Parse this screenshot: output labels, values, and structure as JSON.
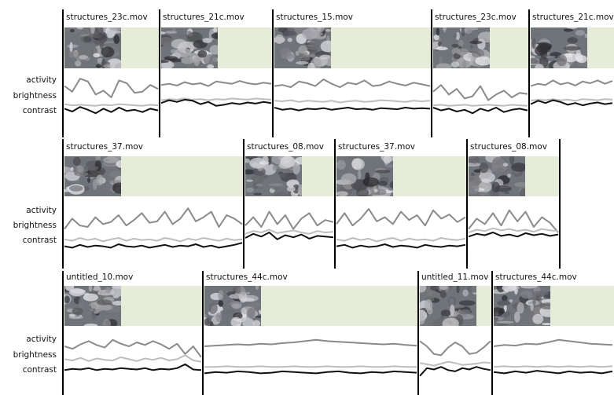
{
  "labels": {
    "activity": "activity",
    "brightness": "brightness",
    "contrast": "contrast"
  },
  "rows": [
    {
      "clips": [
        {
          "name": "structures_23c.mov",
          "activity": [
            70,
            60,
            83,
            78,
            55,
            62,
            50,
            80,
            75,
            58,
            60,
            72,
            65
          ],
          "brightness": [
            38,
            36,
            37,
            36,
            35,
            37,
            36,
            38,
            37,
            36,
            35,
            37,
            36
          ],
          "contrast": [
            30,
            25,
            33,
            28,
            22,
            30,
            24,
            32,
            26,
            28,
            24,
            30,
            27
          ]
        },
        {
          "name": "structures_21c.mov",
          "activity": [
            72,
            74,
            71,
            77,
            73,
            75,
            70,
            78,
            76,
            74,
            79,
            75,
            73,
            76,
            74
          ],
          "brightness": [
            45,
            47,
            46,
            48,
            46,
            47,
            45,
            47,
            46,
            48,
            47,
            46,
            48,
            47,
            46
          ],
          "contrast": [
            40,
            45,
            42,
            46,
            44,
            38,
            42,
            35,
            37,
            40,
            38,
            41,
            39,
            42,
            40
          ]
        },
        {
          "name": "structures_15.mov",
          "activity": [
            70,
            72,
            68,
            78,
            75,
            70,
            82,
            74,
            68,
            76,
            73,
            80,
            70,
            72,
            78,
            74,
            71,
            76,
            73,
            70
          ],
          "brightness": [
            44,
            43,
            45,
            42,
            44,
            43,
            42,
            44,
            41,
            43,
            44,
            42,
            43,
            45,
            44,
            43,
            42,
            44,
            43,
            44
          ],
          "contrast": [
            32,
            28,
            30,
            27,
            30,
            29,
            31,
            28,
            30,
            32,
            29,
            30,
            28,
            31,
            30,
            29,
            32,
            30,
            31,
            30
          ]
        },
        {
          "name": "structures_23c.mov",
          "activity": [
            60,
            72,
            55,
            65,
            48,
            52,
            70,
            45,
            55,
            62,
            50,
            58,
            56
          ],
          "brightness": [
            36,
            37,
            35,
            36,
            37,
            35,
            36,
            37,
            36,
            35,
            37,
            36,
            35
          ],
          "contrast": [
            32,
            27,
            30,
            25,
            28,
            22,
            30,
            26,
            32,
            24,
            28,
            30,
            27
          ]
        },
        {
          "name": "structures_21c.mov",
          "activity": [
            70,
            74,
            72,
            80,
            73,
            76,
            71,
            78,
            75,
            80,
            74,
            79
          ],
          "brightness": [
            44,
            46,
            45,
            47,
            45,
            46,
            44,
            47,
            46,
            45,
            47,
            46
          ],
          "contrast": [
            38,
            44,
            40,
            45,
            42,
            37,
            40,
            36,
            39,
            41,
            38,
            40
          ]
        }
      ]
    },
    {
      "clips": [
        {
          "name": "structures_37.mov",
          "activity": [
            55,
            70,
            60,
            58,
            72,
            62,
            65,
            75,
            60,
            68,
            78,
            64,
            66,
            80,
            62,
            70,
            85,
            66,
            72,
            80,
            58,
            75,
            70,
            62
          ],
          "brightness": [
            40,
            38,
            42,
            39,
            41,
            37,
            40,
            42,
            38,
            41,
            39,
            40,
            38,
            42,
            40,
            37,
            41,
            39,
            42,
            40,
            38,
            41,
            39,
            40
          ],
          "contrast": [
            30,
            28,
            32,
            29,
            31,
            30,
            28,
            33,
            30,
            29,
            31,
            28,
            30,
            32,
            29,
            31,
            30,
            33,
            29,
            31,
            28,
            30,
            32,
            35
          ]
        },
        {
          "name": "structures_08.mov",
          "activity": [
            60,
            72,
            58,
            80,
            62,
            75,
            55,
            70,
            78,
            60,
            68,
            65
          ],
          "brightness": [
            48,
            52,
            50,
            54,
            49,
            51,
            53,
            50,
            48,
            52,
            50,
            51
          ],
          "contrast": [
            42,
            48,
            44,
            50,
            40,
            46,
            43,
            47,
            41,
            45,
            44,
            43
          ]
        },
        {
          "name": "structures_37.mov",
          "activity": [
            62,
            78,
            60,
            70,
            84,
            66,
            72,
            62,
            80,
            68,
            75,
            60,
            82,
            70,
            76,
            65,
            72
          ],
          "brightness": [
            40,
            38,
            42,
            39,
            41,
            37,
            40,
            42,
            38,
            41,
            39,
            40,
            38,
            42,
            40,
            39,
            41
          ],
          "contrast": [
            30,
            32,
            28,
            31,
            29,
            30,
            33,
            29,
            31,
            30,
            28,
            32,
            30,
            29,
            31,
            30,
            32
          ]
        },
        {
          "name": "structures_08.mov",
          "activity": [
            55,
            70,
            62,
            78,
            60,
            82,
            66,
            80,
            58,
            72,
            64,
            50
          ],
          "brightness": [
            50,
            54,
            52,
            56,
            53,
            55,
            52,
            54,
            51,
            55,
            53,
            52
          ],
          "contrast": [
            44,
            48,
            46,
            50,
            45,
            47,
            44,
            49,
            46,
            48,
            45,
            47
          ]
        }
      ]
    },
    {
      "clips": [
        {
          "name": "untitled_10.mov",
          "activity": [
            72,
            68,
            75,
            80,
            74,
            70,
            82,
            76,
            72,
            78,
            74,
            80,
            75,
            68,
            76,
            60,
            72,
            55
          ],
          "brightness": [
            52,
            50,
            54,
            49,
            53,
            51,
            50,
            55,
            52,
            49,
            53,
            51,
            54,
            50,
            52,
            58,
            50,
            48
          ],
          "contrast": [
            35,
            37,
            36,
            38,
            35,
            37,
            36,
            38,
            37,
            36,
            38,
            35,
            37,
            36,
            38,
            44,
            36,
            35
          ]
        },
        {
          "name": "structures_44c.mov",
          "activity": [
            72,
            73,
            74,
            75,
            74,
            76,
            75,
            77,
            78,
            80,
            82,
            80,
            79,
            78,
            77,
            76,
            75,
            76,
            74,
            73
          ],
          "brightness": [
            40,
            40,
            41,
            40,
            40,
            41,
            40,
            40,
            41,
            40,
            40,
            41,
            40,
            40,
            41,
            40,
            40,
            41,
            40,
            40
          ],
          "contrast": [
            30,
            32,
            31,
            33,
            32,
            30,
            31,
            33,
            32,
            31,
            30,
            32,
            33,
            31,
            30,
            32,
            31,
            33,
            32,
            31
          ]
        },
        {
          "name": "untitled_11.mov",
          "activity": [
            80,
            72,
            60,
            58,
            70,
            78,
            72,
            60,
            62,
            70,
            80
          ],
          "brightness": [
            46,
            44,
            42,
            45,
            48,
            46,
            43,
            44,
            45,
            47,
            46
          ],
          "contrast": [
            26,
            38,
            36,
            40,
            35,
            33,
            38,
            36,
            40,
            37,
            35
          ]
        },
        {
          "name": "structures_44c.mov",
          "activity": [
            72,
            74,
            73,
            76,
            75,
            78,
            82,
            80,
            78,
            76,
            75,
            74
          ],
          "brightness": [
            40,
            41,
            40,
            41,
            40,
            41,
            40,
            41,
            40,
            41,
            40,
            41
          ],
          "contrast": [
            32,
            30,
            33,
            31,
            34,
            32,
            30,
            33,
            31,
            32,
            30,
            33
          ]
        }
      ]
    }
  ]
}
